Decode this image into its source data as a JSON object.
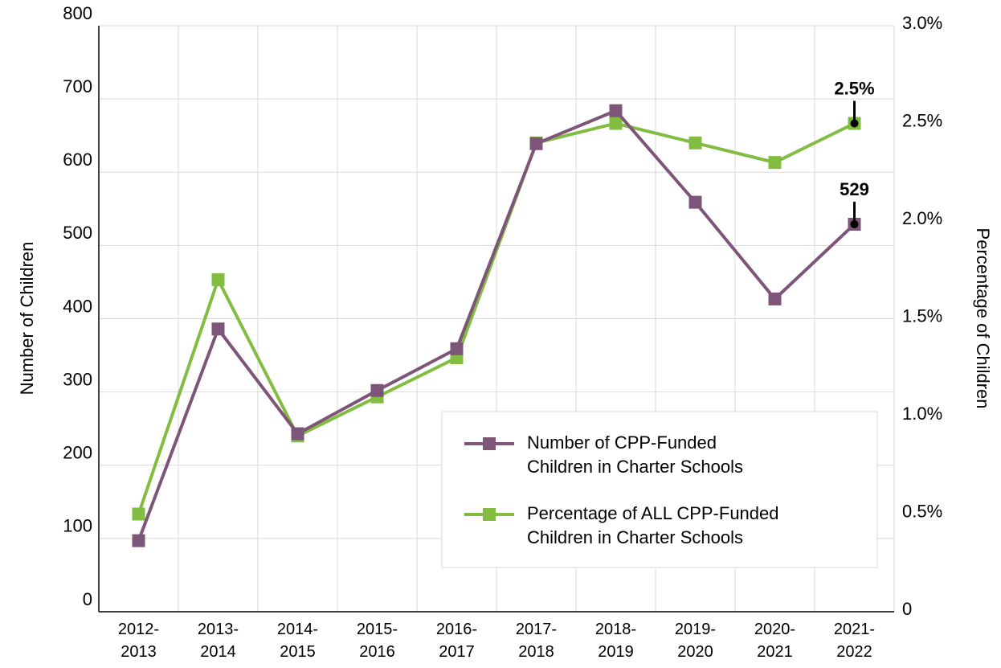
{
  "chart_data": {
    "type": "line",
    "categories": [
      "2012-2013",
      "2013-2014",
      "2014-2015",
      "2015-2016",
      "2016-2017",
      "2017-2018",
      "2018-2019",
      "2019-2020",
      "2020-2021",
      "2021-2022"
    ],
    "series": [
      {
        "name": "Number of CPP-Funded Children in Charter Schools",
        "color": "#7d5578",
        "values": [
          97,
          386,
          243,
          302,
          359,
          639,
          684,
          559,
          427,
          529
        ],
        "value_labels": [
          null,
          null,
          null,
          null,
          null,
          null,
          null,
          null,
          null,
          "529"
        ]
      },
      {
        "name": "Percentage of ALL CPP-Funded Children in Charter Schools",
        "color": "#82bd41",
        "axis": "y2",
        "values": [
          0.5,
          1.7,
          0.9,
          1.1,
          1.3,
          2.4,
          2.5,
          2.4,
          2.3,
          2.5
        ],
        "value_labels": [
          null,
          null,
          null,
          null,
          null,
          null,
          null,
          null,
          null,
          "2.5%"
        ]
      }
    ],
    "ylabel": "Number of Children",
    "y2label": "Percentage of Children",
    "ylim": [
      0,
      800
    ],
    "yticks": [
      0,
      100,
      200,
      300,
      400,
      500,
      600,
      700,
      800
    ],
    "y2lim": [
      0,
      3.0
    ],
    "y2ticks": [
      0,
      {
        "value": 0.5,
        "label": "0.5%"
      },
      {
        "value": 1.0,
        "label": "1.0%"
      },
      {
        "value": 1.5,
        "label": "1.5%"
      },
      {
        "value": 2.0,
        "label": "2.0%"
      },
      {
        "value": 2.5,
        "label": "2.5%"
      },
      {
        "value": 3.0,
        "label": "3.0%"
      }
    ],
    "grid": true,
    "legend": "lower right"
  }
}
